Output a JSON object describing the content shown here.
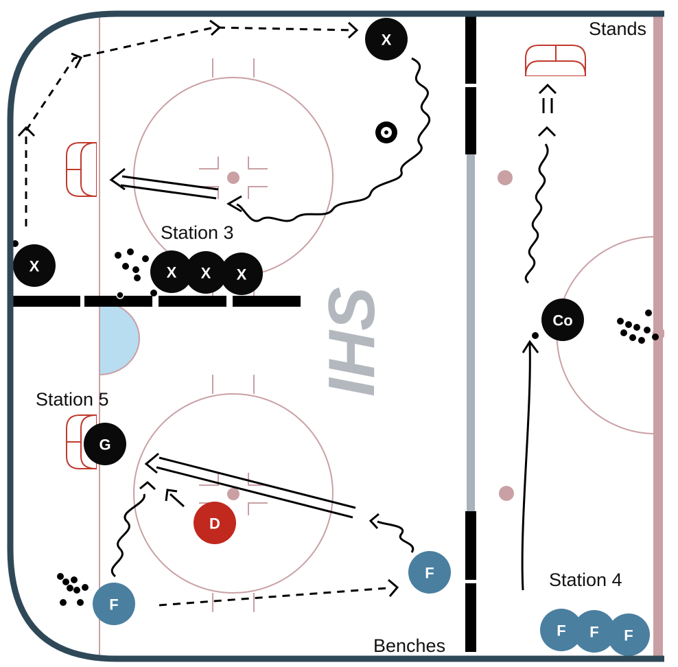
{
  "labels": {
    "station3": "Station 3",
    "station5": "Station 5",
    "station4": "Station 4",
    "stands": "Stands",
    "benches": "Benches"
  },
  "logo_text": "IHS",
  "players": {
    "x_top": "X",
    "x_left": "X",
    "x_line_1": "X",
    "x_line_2": "X",
    "x_line_3": "X",
    "goalie": "G",
    "defense": "D",
    "forward_right": "F",
    "forward_left": "F",
    "forward_line_1": "F",
    "forward_line_2": "F",
    "forward_line_3": "F",
    "coach": "Co"
  },
  "colors": {
    "board": "#2f4858",
    "ice_line": "#c9a0a4",
    "goal_crease": "#b8dcf0",
    "net": "#c0392b",
    "black_player": "#0a0a0a",
    "blue_player": "#4a7fa0",
    "red_player": "#c1281e",
    "divider": "#a9b2ba"
  }
}
